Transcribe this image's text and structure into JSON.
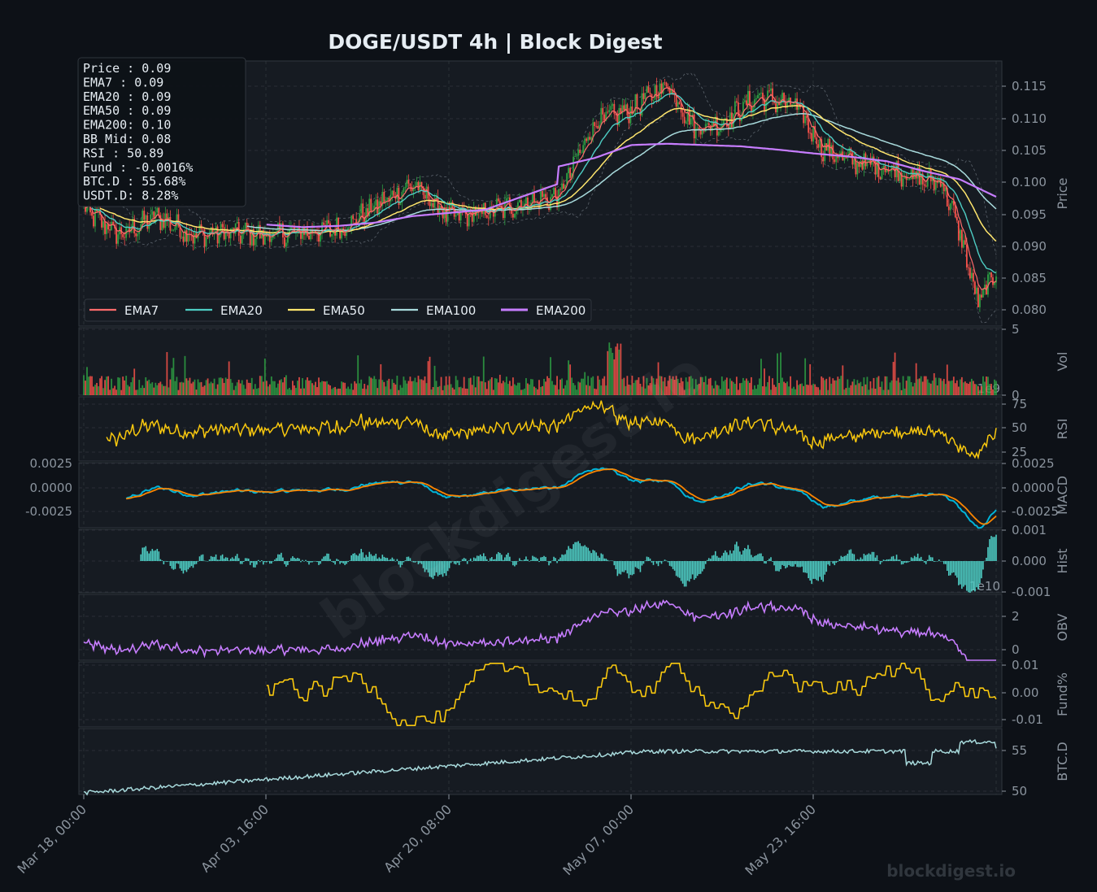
{
  "title": "DOGE/USDT  4h  |  Block Digest",
  "watermark": "blockdigest.io",
  "footer": "blockdigest.io",
  "info_box": {
    "lines": [
      "Price :        0.09",
      "EMA7  :        0.09",
      "EMA20 :        0.09",
      "EMA50 :        0.09",
      "EMA200:        0.10",
      "BB Mid:        0.08",
      "RSI   :       50.89",
      "Fund  :    -0.0016%",
      "BTC.D :      55.68%",
      "USDT.D:       8.28%"
    ]
  },
  "colors": {
    "bg": "#0d1117",
    "panel": "#161b22",
    "grid": "#30363d",
    "text": "#8b949e",
    "title": "#e6edf3",
    "up": "#2ea043",
    "down": "#f85149",
    "ema7": "#ff6b6b",
    "ema20": "#4ecdc4",
    "ema50": "#ffe66d",
    "ema100": "#a8dadc",
    "ema200": "#c77dff",
    "rsi": "#f9c80e",
    "macd": "#00b4d8",
    "signal": "#fb8500",
    "hist": "#4ecdc4",
    "obv": "#c77dff",
    "fund": "#f9c80e",
    "btcd": "#a8dadc"
  },
  "chart_data": {
    "type": "line",
    "x_ticks": [
      "Mar 18, 00:00",
      "Apr 03, 16:00",
      "Apr 20, 08:00",
      "May 07, 00:00",
      "May 23, 16:00"
    ],
    "legend": [
      "EMA7",
      "EMA20",
      "EMA50",
      "EMA100",
      "EMA200"
    ],
    "price_panel": {
      "ylabel": "Price",
      "ylim": [
        0.0775,
        0.1185
      ],
      "yticks": [
        "0.080",
        "0.085",
        "0.090",
        "0.095",
        "0.100",
        "0.105",
        "0.110",
        "0.115"
      ],
      "x_frac": [
        0.0,
        0.04,
        0.08,
        0.12,
        0.16,
        0.2,
        0.24,
        0.28,
        0.32,
        0.36,
        0.4,
        0.44,
        0.48,
        0.52,
        0.5,
        0.56,
        0.6,
        0.64,
        0.68,
        0.72,
        0.76,
        0.8,
        0.84,
        0.88,
        0.92,
        0.96,
        1.0
      ],
      "price_anchor_frac": [
        0.0,
        0.04,
        0.08,
        0.12,
        0.16,
        0.2,
        0.24,
        0.28,
        0.32,
        0.36,
        0.4,
        0.44,
        0.48,
        0.52,
        0.56,
        0.6,
        0.64,
        0.67,
        0.7,
        0.74,
        0.78,
        0.81,
        0.84,
        0.88,
        0.92,
        0.94,
        0.96,
        0.98,
        1.0
      ],
      "price_anchor": [
        0.0955,
        0.0915,
        0.0945,
        0.0915,
        0.092,
        0.0915,
        0.092,
        0.0925,
        0.096,
        0.0995,
        0.0945,
        0.095,
        0.0965,
        0.0975,
        0.109,
        0.111,
        0.115,
        0.108,
        0.109,
        0.113,
        0.1115,
        0.105,
        0.103,
        0.102,
        0.1,
        0.1,
        0.092,
        0.081,
        0.086
      ],
      "ema200_anchor": [
        null,
        null,
        null,
        null,
        null,
        0.0932,
        0.0928,
        0.093,
        0.0935,
        0.0945,
        0.095,
        0.0955,
        0.0975,
        0.0995,
        0.1015,
        0.1035,
        0.1055,
        0.1057,
        0.1055,
        0.1053,
        0.1048,
        0.1042,
        0.1037,
        0.103,
        0.1015,
        0.1002,
        0.0975
      ]
    },
    "volume_panel": {
      "ylabel": "Vol",
      "yticks": [
        "0",
        "5"
      ],
      "scale_label": "1e9"
    },
    "rsi_panel": {
      "ylabel": "RSI",
      "ylim": [
        20,
        80
      ],
      "yticks": [
        "25",
        "50",
        "75"
      ],
      "last": 50.89
    },
    "macd_panel": {
      "ylabel": "MACD",
      "ylim": [
        -0.0042,
        0.0032
      ],
      "yticks": [
        "-0.0025",
        "0.0000",
        "0.0025"
      ]
    },
    "hist_panel": {
      "ylabel": "Hist",
      "ylim": [
        -0.001,
        0.001
      ],
      "yticks": [
        "-0.001",
        "0.000",
        "0.001"
      ],
      "scale_label": "1e10"
    },
    "obv_panel": {
      "ylabel": "OBV",
      "ylim": [
        -0.6,
        3.2
      ],
      "yticks": [
        "0",
        "2"
      ]
    },
    "fund_panel": {
      "ylabel": "Fund%",
      "ylim": [
        -0.011,
        0.011
      ],
      "yticks": [
        "-0.01",
        "0.00",
        "0.01"
      ],
      "last": -0.0016
    },
    "btcd_panel": {
      "ylabel": "BTC.D",
      "ylim": [
        49.8,
        58.2
      ],
      "yticks": [
        "50",
        "55"
      ],
      "last": 55.68
    }
  }
}
